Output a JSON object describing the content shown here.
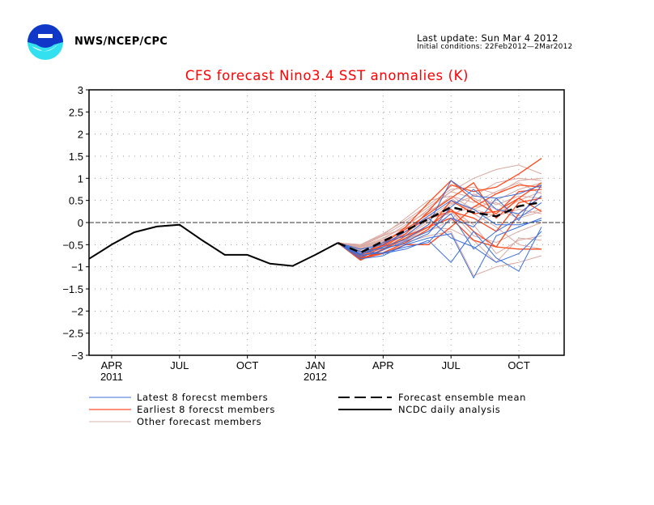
{
  "header": {
    "org": "NWS/NCEP/CPC",
    "logo_icon": "noaa-logo",
    "last_update": "Last update: Sun Mar 4 2012",
    "initial_conditions": "Initial conditions: 22Feb2012—2Mar2012"
  },
  "colors": {
    "title": "#ff0000",
    "latest": "#3a6fdc",
    "earliest": "#ff4a1c",
    "other": "#d9a8a0",
    "analysis": "#000000",
    "mean": "#000000",
    "grid": "#9a9a9a"
  },
  "chart_data": {
    "type": "line",
    "title": "CFS forecast Nino3.4 SST anomalies (K)",
    "xlabel": "",
    "ylabel": "",
    "ylim": [
      -3,
      3
    ],
    "yticks": [
      3,
      2.5,
      2,
      1.5,
      1,
      0.5,
      0,
      -0.5,
      -1,
      -1.5,
      -2,
      -2.5,
      -3
    ],
    "ytick_labels": [
      "3",
      "2.5",
      "2",
      "1.5",
      "1",
      "0.5",
      "0",
      "−0.5",
      "−1",
      "−1.5",
      "−2",
      "−2.5",
      "−3"
    ],
    "x_months_range": [
      "Mar 2011",
      "Dec 2012"
    ],
    "xticks": [
      {
        "month_index": 1,
        "label": "APR",
        "year": "2011"
      },
      {
        "month_index": 4,
        "label": "JUL",
        "year": ""
      },
      {
        "month_index": 7,
        "label": "OCT",
        "year": ""
      },
      {
        "month_index": 10,
        "label": "JAN",
        "year": "2012"
      },
      {
        "month_index": 13,
        "label": "APR",
        "year": ""
      },
      {
        "month_index": 16,
        "label": "JUL",
        "year": ""
      },
      {
        "month_index": 19,
        "label": "OCT",
        "year": ""
      }
    ],
    "grid": true,
    "zero_line": true,
    "legend_position": "bottom",
    "legend": [
      {
        "key": "latest",
        "label": "Latest 8 forecst members",
        "style": "thin-blue"
      },
      {
        "key": "earliest",
        "label": "Earliest 8 forecst members",
        "style": "red"
      },
      {
        "key": "other",
        "label": "Other forecast members",
        "style": "thin-pink"
      },
      {
        "key": "mean",
        "label": "Forecast ensemble mean",
        "style": "dashed-black"
      },
      {
        "key": "analysis",
        "label": "NCDC daily analysis",
        "style": "solid-black"
      }
    ],
    "analysis": {
      "name": "NCDC daily analysis",
      "month_index": [
        0,
        1,
        2,
        3,
        4,
        5,
        6,
        7,
        8,
        9,
        10,
        11
      ],
      "values": [
        -0.82,
        -0.5,
        -0.22,
        -0.09,
        -0.05,
        -0.4,
        -0.73,
        -0.73,
        -0.93,
        -0.98,
        -0.73,
        -0.46
      ]
    },
    "forecast_month_index": [
      11,
      12,
      13,
      14,
      15,
      16,
      17,
      18,
      19,
      20
    ],
    "forecast_months": [
      "Feb 2012",
      "Mar 2012",
      "Apr 2012",
      "May 2012",
      "Jun 2012",
      "Jul 2012",
      "Aug 2012",
      "Sep 2012",
      "Oct 2012",
      "Nov 2012"
    ],
    "ensemble_mean": {
      "name": "Forecast ensemble mean",
      "values": [
        -0.46,
        -0.68,
        -0.42,
        -0.18,
        0.08,
        0.35,
        0.23,
        0.14,
        0.37,
        0.46
      ]
    },
    "latest_members": [
      [
        -0.46,
        -0.72,
        -0.55,
        -0.38,
        -0.05,
        0.95,
        0.6,
        0.55,
        0.65,
        0.85
      ],
      [
        -0.46,
        -0.65,
        -0.7,
        -0.6,
        -0.4,
        -0.9,
        -0.2,
        -0.8,
        -1.1,
        -0.1
      ],
      [
        -0.46,
        -0.78,
        -0.62,
        -0.42,
        -0.2,
        0.2,
        -0.6,
        -0.2,
        0.1,
        0.45
      ],
      [
        -0.46,
        -0.6,
        -0.5,
        -0.2,
        0.15,
        0.5,
        0.3,
        -0.05,
        -0.05,
        0.05
      ],
      [
        -0.46,
        -0.82,
        -0.75,
        -0.5,
        -0.35,
        -0.25,
        -1.25,
        -0.3,
        -0.1,
        0.1
      ],
      [
        -0.46,
        -0.7,
        -0.45,
        -0.3,
        0.1,
        -0.35,
        -0.55,
        -0.9,
        -0.7,
        -0.2
      ],
      [
        -0.46,
        -0.66,
        -0.58,
        -0.48,
        -0.25,
        0.35,
        0.75,
        0.3,
        0.2,
        0.6
      ],
      [
        -0.46,
        -0.74,
        -0.68,
        -0.55,
        -0.45,
        0.1,
        -0.1,
        0.55,
        0.05,
        0.85
      ]
    ],
    "earliest_members": [
      [
        -0.46,
        -0.8,
        -0.55,
        -0.25,
        0.25,
        0.85,
        0.7,
        0.8,
        1.1,
        1.45
      ],
      [
        -0.46,
        -0.85,
        -0.62,
        -0.35,
        -0.1,
        0.3,
        -0.2,
        -0.55,
        -0.6,
        -0.6
      ],
      [
        -0.46,
        -0.75,
        -0.45,
        -0.15,
        0.2,
        0.55,
        0.9,
        0.1,
        0.55,
        0.9
      ],
      [
        -0.46,
        -0.82,
        -0.7,
        -0.5,
        -0.5,
        -0.1,
        0.35,
        0.65,
        0.85,
        0.8
      ],
      [
        -0.46,
        -0.78,
        -0.5,
        -0.1,
        0.45,
        0.95,
        0.5,
        0.2,
        0.7,
        0.75
      ],
      [
        -0.46,
        -0.84,
        -0.6,
        -0.3,
        -0.1,
        0.1,
        -0.4,
        -0.55,
        0.2,
        0.6
      ],
      [
        -0.46,
        -0.72,
        -0.52,
        -0.2,
        0.1,
        0.25,
        0.1,
        -0.2,
        0.45,
        0.55
      ],
      [
        -0.46,
        -0.8,
        -0.68,
        -0.45,
        -0.15,
        0.5,
        0.2,
        0.25,
        0.55,
        0.25
      ]
    ],
    "other_members": [
      [
        -0.46,
        -0.55,
        -0.35,
        -0.1,
        0.3,
        0.7,
        1.0,
        1.2,
        1.3,
        1.1
      ],
      [
        -0.46,
        -0.5,
        -0.25,
        0.05,
        0.4,
        0.75,
        0.8,
        0.65,
        0.95,
        1.0
      ],
      [
        -0.46,
        -0.6,
        -0.42,
        -0.2,
        0.1,
        0.45,
        0.3,
        0.5,
        0.75,
        0.9
      ],
      [
        -0.46,
        -0.65,
        -0.55,
        -0.35,
        -0.05,
        0.25,
        -0.3,
        -0.45,
        -0.2,
        0.0
      ],
      [
        -0.46,
        -0.58,
        -0.4,
        -0.15,
        0.2,
        0.6,
        0.45,
        0.7,
        0.9,
        0.65
      ],
      [
        -0.46,
        -0.7,
        -0.6,
        -0.45,
        -0.3,
        -0.2,
        -1.2,
        -1.0,
        -0.9,
        -0.75
      ],
      [
        -0.46,
        -0.52,
        -0.3,
        0.0,
        0.35,
        0.7,
        0.55,
        0.3,
        0.1,
        0.25
      ],
      [
        -0.46,
        -0.62,
        -0.45,
        -0.3,
        0.0,
        0.1,
        0.0,
        0.2,
        0.5,
        0.7
      ],
      [
        -0.46,
        -0.68,
        -0.5,
        -0.28,
        0.05,
        0.4,
        0.6,
        0.9,
        1.0,
        0.95
      ],
      [
        -0.46,
        -0.56,
        -0.38,
        -0.05,
        0.25,
        0.55,
        0.2,
        -0.1,
        -0.5,
        -0.6
      ],
      [
        -0.46,
        -0.6,
        -0.48,
        -0.25,
        0.15,
        0.3,
        -0.05,
        -0.7,
        -0.4,
        -0.3
      ],
      [
        -0.46,
        -0.54,
        -0.3,
        -0.12,
        0.1,
        0.2,
        0.35,
        0.45,
        0.15,
        0.3
      ],
      [
        -0.46,
        -0.66,
        -0.52,
        -0.38,
        -0.2,
        0.05,
        0.65,
        0.4,
        0.6,
        0.55
      ],
      [
        -0.46,
        -0.5,
        -0.28,
        0.1,
        0.5,
        0.6,
        0.3,
        0.15,
        0.3,
        0.2
      ],
      [
        -0.46,
        -0.64,
        -0.58,
        -0.4,
        -0.1,
        -0.15,
        -0.4,
        -0.9,
        -0.35,
        -0.4
      ]
    ]
  }
}
